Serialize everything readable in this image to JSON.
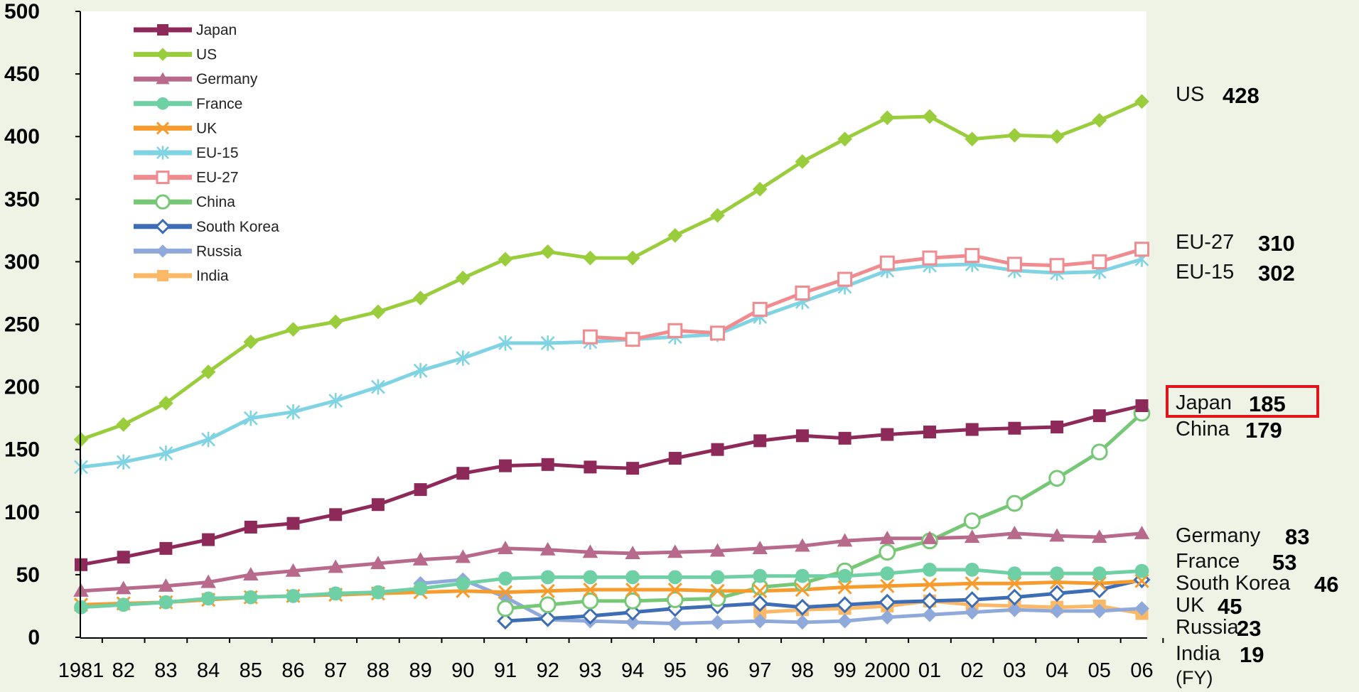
{
  "chart_data": {
    "type": "line",
    "x_categories": [
      "1981",
      "82",
      "83",
      "84",
      "85",
      "86",
      "87",
      "88",
      "89",
      "90",
      "91",
      "92",
      "93",
      "94",
      "95",
      "96",
      "97",
      "98",
      "99",
      "2000",
      "01",
      "02",
      "03",
      "04",
      "05",
      "06"
    ],
    "x_unit_label": "(FY)",
    "ylim": [
      0,
      500
    ],
    "yticks": [
      "0",
      "50",
      "100",
      "150",
      "200",
      "250",
      "300",
      "350",
      "400",
      "450",
      "500"
    ],
    "grid": false,
    "legend_position": "top-left",
    "highlighted_series": "Japan",
    "highlight_color": "#e0161b",
    "series": [
      {
        "name": "Japan",
        "color": "#8e2a5a",
        "marker": "square-filled",
        "start_index": 0,
        "values": [
          58,
          64,
          71,
          78,
          88,
          91,
          98,
          106,
          118,
          131,
          137,
          138,
          136,
          135,
          143,
          150,
          157,
          161,
          159,
          162,
          164,
          166,
          167,
          168,
          177,
          185
        ],
        "end_label": "Japan",
        "end_value": "185"
      },
      {
        "name": "US",
        "color": "#9acd3c",
        "marker": "diamond-filled",
        "start_index": 0,
        "values": [
          158,
          170,
          187,
          212,
          236,
          246,
          252,
          260,
          271,
          287,
          302,
          308,
          303,
          303,
          321,
          337,
          358,
          380,
          398,
          415,
          416,
          398,
          401,
          400,
          413,
          428
        ],
        "end_label": "US",
        "end_value": "428"
      },
      {
        "name": "Germany",
        "color": "#b86a8c",
        "marker": "triangle-filled",
        "start_index": 0,
        "values": [
          37,
          39,
          41,
          44,
          50,
          53,
          56,
          59,
          62,
          64,
          71,
          70,
          68,
          67,
          68,
          69,
          71,
          73,
          77,
          79,
          79,
          80,
          83,
          81,
          80,
          83
        ],
        "end_label": "Germany",
        "end_value": "83"
      },
      {
        "name": "France",
        "color": "#6fcfa5",
        "marker": "circle-filled",
        "start_index": 0,
        "values": [
          24,
          26,
          28,
          31,
          32,
          33,
          35,
          36,
          39,
          43,
          47,
          48,
          48,
          48,
          48,
          48,
          49,
          49,
          49,
          51,
          54,
          54,
          51,
          51,
          51,
          53
        ],
        "end_label": "France",
        "end_value": "53"
      },
      {
        "name": "UK",
        "color": "#f79b2c",
        "marker": "x",
        "start_index": 0,
        "values": [
          26,
          27,
          28,
          30,
          32,
          33,
          34,
          35,
          36,
          37,
          36,
          37,
          38,
          38,
          38,
          37,
          37,
          38,
          40,
          41,
          42,
          43,
          43,
          44,
          43,
          45
        ],
        "end_label": "UK",
        "end_value": "45"
      },
      {
        "name": "EU-15",
        "color": "#7fd3e3",
        "marker": "asterisk",
        "start_index": 0,
        "values": [
          136,
          140,
          147,
          158,
          175,
          180,
          189,
          200,
          213,
          223,
          235,
          235,
          236,
          238,
          240,
          242,
          256,
          268,
          280,
          293,
          297,
          298,
          293,
          291,
          292,
          302
        ],
        "end_label": "EU-15",
        "end_value": "302"
      },
      {
        "name": "EU-27",
        "color": "#f08b90",
        "marker": "square-open",
        "start_index": 12,
        "values": [
          240,
          238,
          245,
          243,
          262,
          275,
          286,
          299,
          303,
          305,
          298,
          297,
          300,
          310
        ],
        "end_label": "EU-27",
        "end_value": "310"
      },
      {
        "name": "China",
        "color": "#76c776",
        "marker": "circle-open",
        "start_index": 10,
        "values": [
          23,
          26,
          29,
          29,
          30,
          31,
          40,
          43,
          53,
          68,
          77,
          93,
          107,
          127,
          148,
          179
        ],
        "end_label": "China",
        "end_value": "179"
      },
      {
        "name": "South Korea",
        "color": "#3d6db5",
        "marker": "diamond-open",
        "start_index": 10,
        "values": [
          13,
          15,
          17,
          20,
          23,
          25,
          27,
          24,
          26,
          28,
          29,
          30,
          32,
          35,
          38,
          46
        ],
        "end_label": "South Korea",
        "end_value": "46"
      },
      {
        "name": "Russia",
        "color": "#8ea9da",
        "marker": "diamond-filled",
        "start_index": 8,
        "values": [
          43,
          46,
          32,
          14,
          13,
          12,
          11,
          12,
          13,
          12,
          13,
          16,
          18,
          20,
          22,
          21,
          21,
          23
        ],
        "end_label": "Russia",
        "end_value": "23"
      },
      {
        "name": "India",
        "color": "#fbb866",
        "marker": "square-filled",
        "start_index": 16,
        "values": [
          20,
          22,
          23,
          25,
          29,
          26,
          25,
          24,
          25,
          19
        ],
        "end_label": "India",
        "end_value": "19"
      }
    ]
  }
}
